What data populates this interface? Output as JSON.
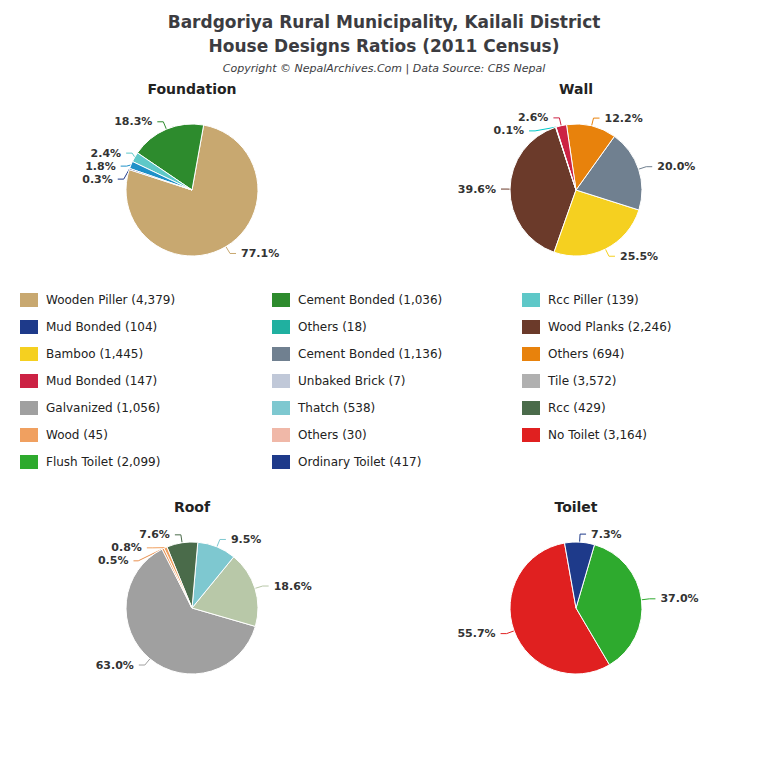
{
  "title": "Bardgoriya Rural Municipality, Kailali District",
  "subtitle": "House Designs Ratios (2011 Census)",
  "annotations": [
    "Copyright © NepalArchives.Com | Data Source: CBS Nepal"
  ],
  "chart_data": [
    {
      "type": "pie",
      "title": "Foundation",
      "values": [
        77.1,
        18.3,
        2.4,
        1.8,
        0.3
      ],
      "value_labels": [
        "77.1%",
        "18.3%",
        "2.4%",
        "1.8%",
        "0.3%"
      ],
      "colors": [
        "#C8A870",
        "#2D8B2D",
        "#5EC8C8",
        "#1E90C8",
        "#1E3A8A"
      ],
      "data_labels": true
    },
    {
      "type": "pie",
      "title": "Wall",
      "values": [
        39.6,
        25.5,
        20.0,
        12.2,
        2.6,
        0.1
      ],
      "value_labels": [
        "39.6%",
        "25.5%",
        "20.0%",
        "12.2%",
        "2.6%",
        "0.1%"
      ],
      "colors": [
        "#6B3A2A",
        "#F5D020",
        "#708090",
        "#E8820C",
        "#CC2244",
        "#00C8C8"
      ],
      "data_labels": true
    },
    {
      "type": "pie",
      "title": "Roof",
      "values": [
        63.0,
        18.6,
        9.5,
        7.6,
        0.8,
        0.5
      ],
      "value_labels": [
        "63.0%",
        "18.6%",
        "9.5%",
        "7.6%",
        "0.8%",
        "0.5%"
      ],
      "colors": [
        "#A0A0A0",
        "#B8C8A8",
        "#7EC8D0",
        "#4A6B4A",
        "#F0A060",
        "#E89050"
      ],
      "data_labels": true
    },
    {
      "type": "pie",
      "title": "Toilet",
      "values": [
        55.7,
        37.0,
        7.3
      ],
      "value_labels": [
        "55.7%",
        "37.0%",
        "7.3%"
      ],
      "colors": [
        "#E02020",
        "#2EAA2E",
        "#1E3A8A"
      ],
      "data_labels": true
    }
  ],
  "legend_entries": [
    {
      "name": "Wooden Piller (4,379)",
      "color": "#C8A870"
    },
    {
      "name": "Cement Bonded (1,036)",
      "color": "#2D8B2D"
    },
    {
      "name": "Rcc Piller (139)",
      "color": "#5EC8C8"
    },
    {
      "name": "Mud Bonded (104)",
      "color": "#1E3A8A"
    },
    {
      "name": "Others (18)",
      "color": "#20B0A0"
    },
    {
      "name": "Wood Planks (2,246)",
      "color": "#6B3A2A"
    },
    {
      "name": "Bamboo (1,445)",
      "color": "#F5D020"
    },
    {
      "name": "Cement Bonded (1,136)",
      "color": "#708090"
    },
    {
      "name": "Others (694)",
      "color": "#E8820C"
    },
    {
      "name": "Mud Bonded (147)",
      "color": "#CC2244"
    },
    {
      "name": "Unbaked Brick (7)",
      "color": "#C0C8D8"
    },
    {
      "name": "Tile (3,572)",
      "color": "#B0B0B0"
    },
    {
      "name": "Galvanized (1,056)",
      "color": "#A0A0A0"
    },
    {
      "name": "Thatch (538)",
      "color": "#7EC8D0"
    },
    {
      "name": "Rcc (429)",
      "color": "#4A6B4A"
    },
    {
      "name": "Wood (45)",
      "color": "#F0A060"
    },
    {
      "name": "Others (30)",
      "color": "#F0B8A8"
    },
    {
      "name": "No Toilet (3,164)",
      "color": "#E02020"
    },
    {
      "name": "Flush Toilet (2,099)",
      "color": "#2EAA2E"
    },
    {
      "name": "Ordinary Toilet (417)",
      "color": "#1E3A8A"
    }
  ]
}
